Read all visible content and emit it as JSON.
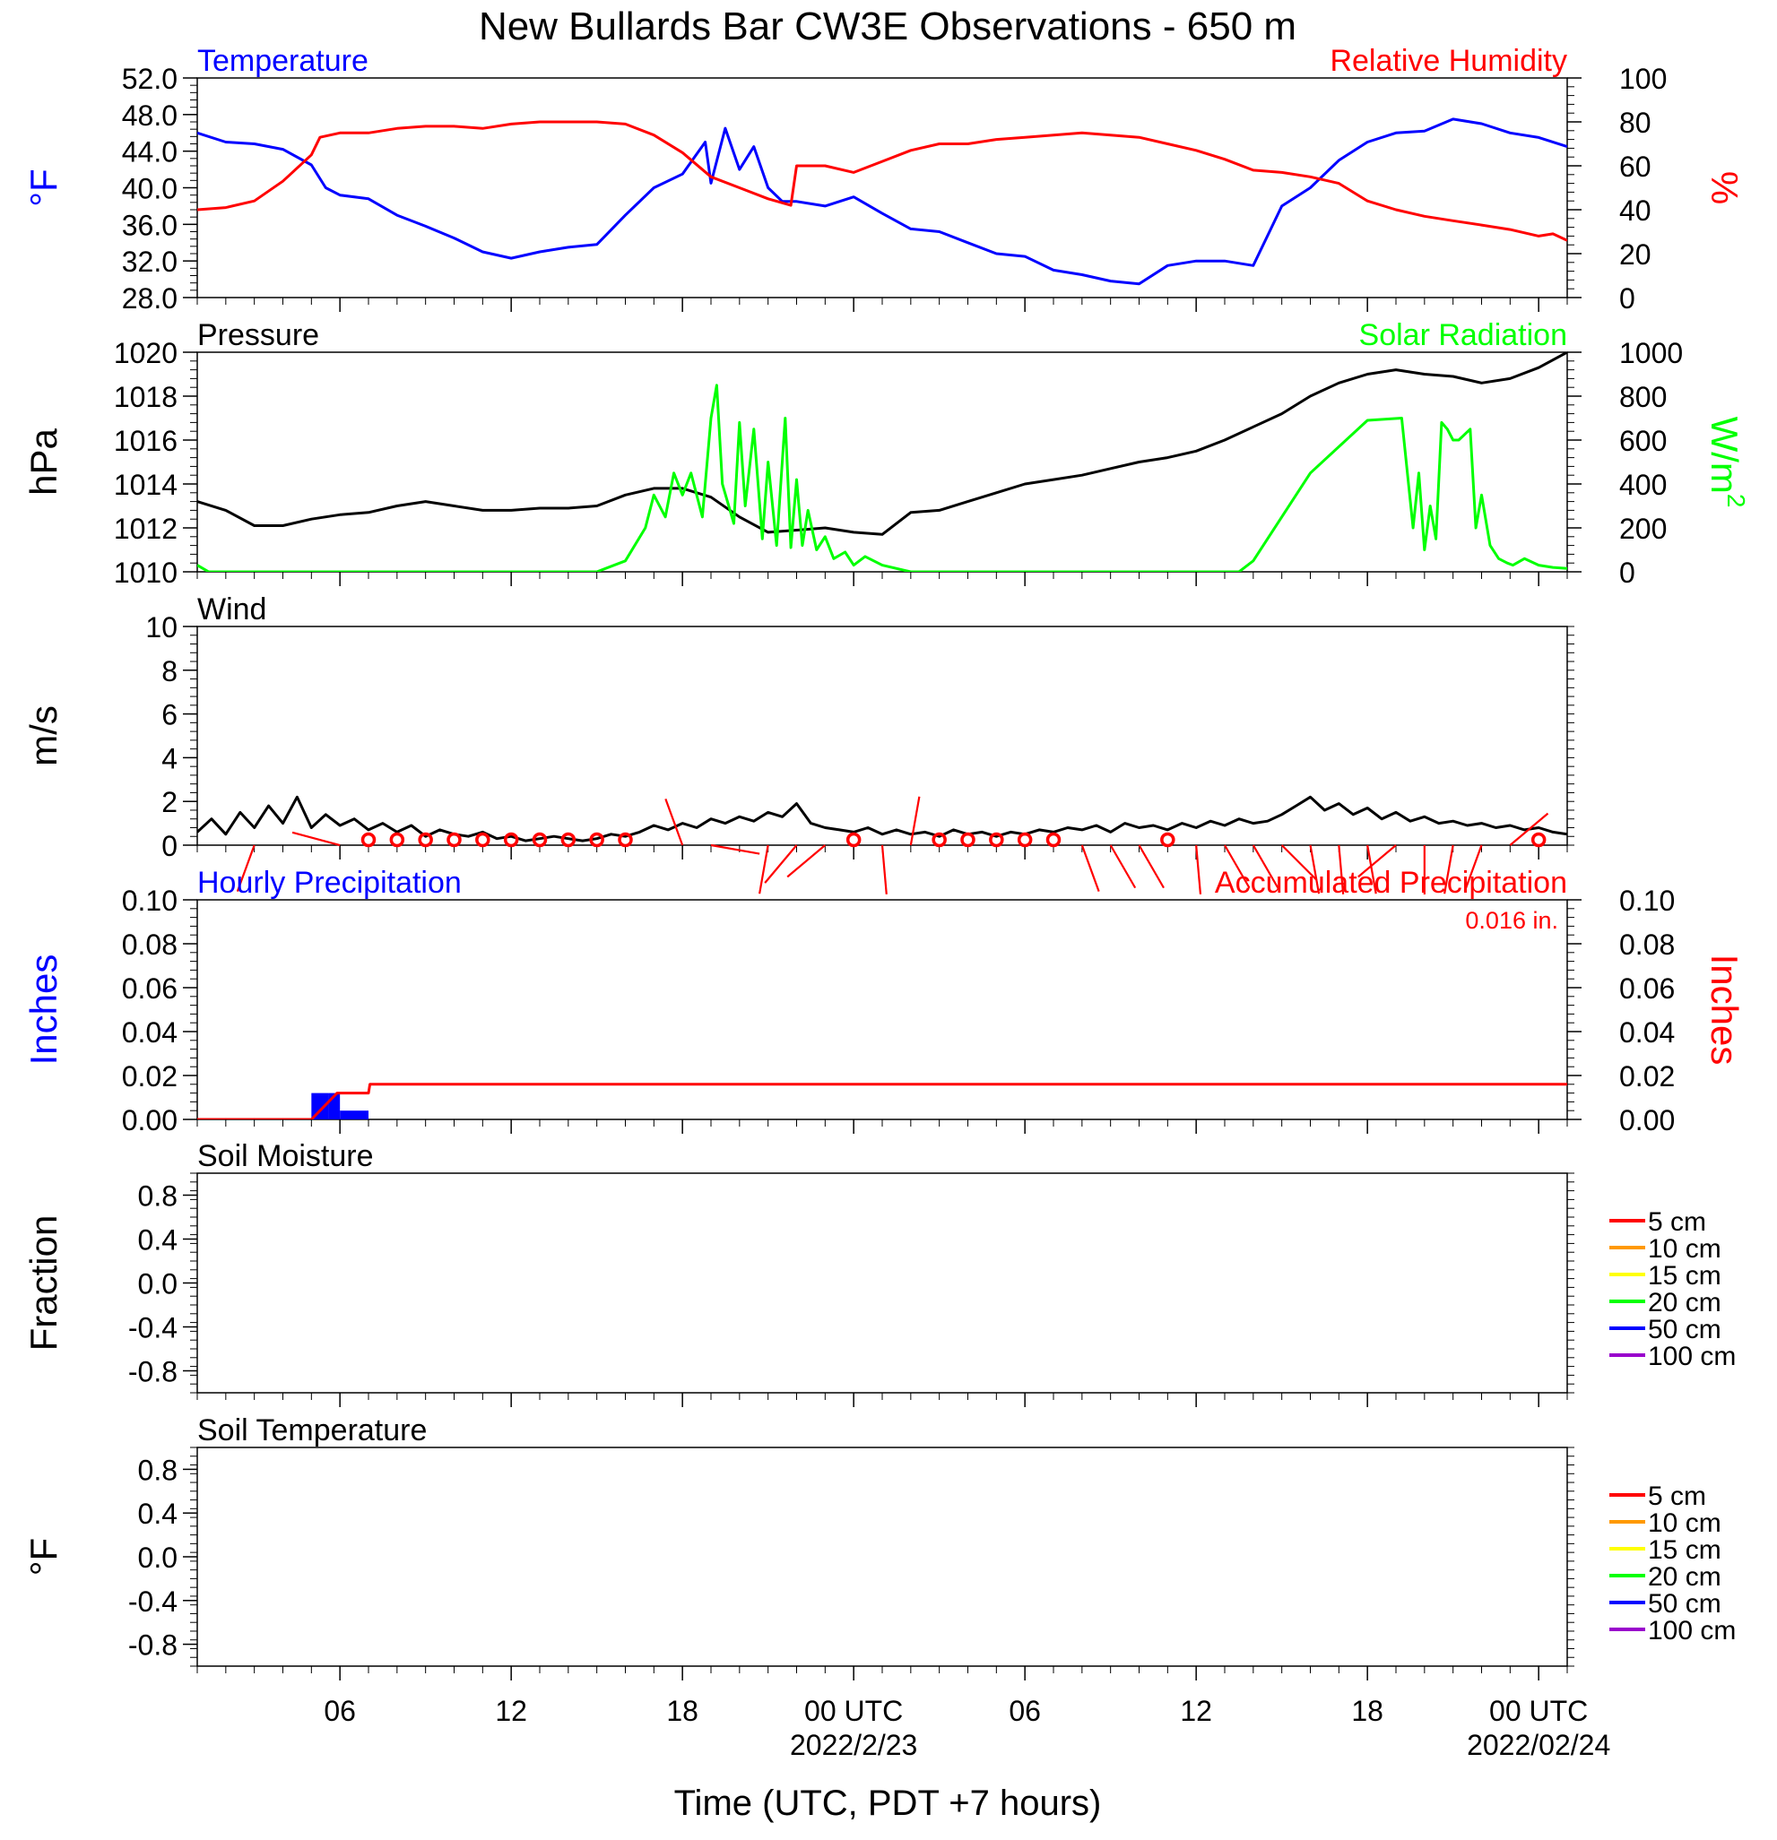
{
  "title": "New Bullards Bar CW3E Observations - 650 m",
  "x_axis": {
    "label": "Time (UTC, PDT +7 hours)",
    "ticks": [
      {
        "hour": 6,
        "label": "06"
      },
      {
        "hour": 12,
        "label": "12"
      },
      {
        "hour": 18,
        "label": "18"
      },
      {
        "hour": 24,
        "label": "00 UTC",
        "date": "2022/2/23"
      },
      {
        "hour": 30,
        "label": "06"
      },
      {
        "hour": 36,
        "label": "12"
      },
      {
        "hour": 42,
        "label": "18"
      },
      {
        "hour": 48,
        "label": "00 UTC",
        "date": "2022/02/24"
      }
    ],
    "range_hours": [
      1,
      49
    ]
  },
  "colors": {
    "temperature": "#0000ff",
    "humidity": "#ff0000",
    "pressure": "#000000",
    "solar": "#00ff00",
    "wind": "#000000",
    "wind_barb": "#ff0000",
    "hourly_precip": "#0000ff",
    "accum_precip": "#ff0000"
  },
  "chart_data": [
    {
      "id": "temp-rh",
      "type": "line",
      "left_title": "Temperature",
      "right_title": "Relative Humidity",
      "left_unit": "°F",
      "right_unit": "%",
      "left_ticks": [
        "52.0",
        "48.0",
        "44.0",
        "40.0",
        "36.0",
        "32.0",
        "28.0"
      ],
      "right_ticks": [
        "100",
        "80",
        "60",
        "40",
        "20",
        "0"
      ],
      "left_ylim": [
        28,
        52
      ],
      "right_ylim": [
        0,
        100
      ],
      "series": [
        {
          "name": "Temperature",
          "axis": "left",
          "x": [
            1,
            2,
            3,
            4,
            5,
            5.5,
            6,
            7,
            8,
            9,
            10,
            11,
            12,
            13,
            14,
            15,
            16,
            17,
            18,
            18.8,
            19,
            19.5,
            20,
            20.5,
            21,
            21.5,
            22,
            23,
            24,
            25,
            26,
            27,
            28,
            29,
            30,
            31,
            32,
            33,
            34,
            35,
            36,
            37,
            38,
            39,
            40,
            41,
            42,
            43,
            44,
            45,
            46,
            47,
            48,
            49
          ],
          "y": [
            46,
            45,
            44.8,
            44.2,
            42.5,
            40,
            39.2,
            38.8,
            37,
            35.8,
            34.5,
            33,
            32.3,
            33,
            33.5,
            33.8,
            37,
            40,
            41.5,
            45,
            40.5,
            46.5,
            42,
            44.5,
            40,
            38.5,
            38.5,
            38,
            39,
            37.2,
            35.5,
            35.2,
            34,
            32.8,
            32.5,
            31,
            30.5,
            29.8,
            29.5,
            31.5,
            32,
            32,
            31.5,
            38,
            40,
            43,
            45,
            46,
            46.2,
            47.5,
            47,
            46,
            45.5,
            44.5
          ]
        },
        {
          "name": "Relative Humidity",
          "axis": "right",
          "x": [
            1,
            2,
            3,
            4,
            5,
            5.3,
            6,
            7,
            8,
            9,
            10,
            11,
            12,
            13,
            14,
            15,
            16,
            17,
            18,
            19,
            20,
            21,
            21.8,
            22,
            23,
            24,
            25,
            26,
            27,
            28,
            29,
            30,
            31,
            32,
            33,
            34,
            35,
            36,
            37,
            38,
            39,
            40,
            41,
            42,
            43,
            44,
            45,
            46,
            47,
            48,
            48.5,
            49
          ],
          "y": [
            40,
            41,
            44,
            53,
            65,
            73,
            75,
            75,
            77,
            78,
            78,
            77,
            79,
            80,
            80,
            80,
            79,
            74,
            66,
            55,
            50,
            45,
            42,
            60,
            60,
            57,
            62,
            67,
            70,
            70,
            72,
            73,
            74,
            75,
            74,
            73,
            70,
            67,
            63,
            58,
            57,
            55,
            52,
            44,
            40,
            37,
            35,
            33,
            31,
            28,
            29,
            26
          ]
        }
      ]
    },
    {
      "id": "pressure-solar",
      "type": "line",
      "left_title": "Pressure",
      "right_title": "Solar Radiation",
      "left_unit": "hPa",
      "right_unit": "W/m",
      "right_unit_sup": "2",
      "left_ticks": [
        "1020",
        "1018",
        "1016",
        "1014",
        "1012",
        "1010"
      ],
      "right_ticks": [
        "1000",
        "800",
        "600",
        "400",
        "200",
        "0"
      ],
      "left_ylim": [
        1010,
        1020
      ],
      "right_ylim": [
        0,
        1000
      ],
      "series": [
        {
          "name": "Pressure",
          "axis": "left",
          "x": [
            1,
            2,
            3,
            4,
            5,
            6,
            7,
            8,
            9,
            10,
            11,
            12,
            13,
            14,
            15,
            16,
            17,
            18,
            19,
            20,
            21,
            22,
            23,
            24,
            25,
            26,
            27,
            28,
            29,
            30,
            31,
            32,
            33,
            34,
            35,
            36,
            37,
            38,
            39,
            40,
            41,
            42,
            43,
            44,
            45,
            46,
            47,
            48,
            49
          ],
          "y": [
            1013.2,
            1012.8,
            1012.1,
            1012.1,
            1012.4,
            1012.6,
            1012.7,
            1013,
            1013.2,
            1013,
            1012.8,
            1012.8,
            1012.9,
            1012.9,
            1013,
            1013.5,
            1013.8,
            1013.8,
            1013.4,
            1012.5,
            1011.8,
            1011.9,
            1012,
            1011.8,
            1011.7,
            1012.7,
            1012.8,
            1013.2,
            1013.6,
            1014,
            1014.2,
            1014.4,
            1014.7,
            1015,
            1015.2,
            1015.5,
            1016,
            1016.6,
            1017.2,
            1018,
            1018.6,
            1019,
            1019.2,
            1019,
            1018.9,
            1018.6,
            1018.8,
            1019.3,
            1020
          ]
        },
        {
          "name": "Solar Radiation",
          "axis": "right",
          "x": [
            1,
            1.4,
            2,
            15,
            16,
            16.7,
            17,
            17.4,
            17.7,
            18,
            18.3,
            18.7,
            19,
            19.2,
            19.4,
            19.8,
            20,
            20.2,
            20.5,
            20.8,
            21,
            21.3,
            21.6,
            21.8,
            22,
            22.2,
            22.4,
            22.7,
            23,
            23.3,
            23.7,
            24,
            24.4,
            25,
            26,
            34,
            37.5,
            38,
            40,
            42,
            43.2,
            43.6,
            43.8,
            44,
            44.2,
            44.4,
            44.6,
            44.8,
            45,
            45.2,
            45.6,
            45.8,
            46,
            46.3,
            46.6,
            46.9,
            47.1,
            47.5,
            48,
            48.5,
            49
          ],
          "y": [
            30,
            0,
            0,
            0,
            50,
            200,
            350,
            250,
            450,
            350,
            450,
            250,
            700,
            850,
            400,
            220,
            680,
            300,
            650,
            150,
            500,
            120,
            700,
            110,
            420,
            120,
            280,
            100,
            160,
            60,
            90,
            30,
            70,
            30,
            0,
            0,
            0,
            50,
            450,
            690,
            700,
            200,
            450,
            100,
            300,
            150,
            680,
            650,
            600,
            600,
            650,
            200,
            350,
            120,
            60,
            40,
            30,
            60,
            30,
            20,
            15
          ]
        }
      ]
    },
    {
      "id": "wind",
      "type": "line",
      "left_title": "Wind",
      "left_unit": "m/s",
      "left_ticks": [
        "10",
        "8",
        "6",
        "4",
        "2",
        "0"
      ],
      "left_ylim": [
        0,
        10
      ],
      "series": [
        {
          "name": "Wind",
          "axis": "left",
          "x": [
            1,
            1.5,
            2,
            2.5,
            3,
            3.5,
            4,
            4.5,
            5,
            5.5,
            6,
            6.5,
            7,
            7.5,
            8,
            8.5,
            9,
            9.5,
            10,
            10.5,
            11,
            11.5,
            12,
            12.5,
            13,
            13.5,
            14,
            14.5,
            15,
            15.5,
            16,
            16.5,
            17,
            17.5,
            18,
            18.5,
            19,
            19.5,
            20,
            20.5,
            21,
            21.5,
            22,
            22.5,
            23,
            23.5,
            24,
            24.5,
            25,
            25.5,
            26,
            26.5,
            27,
            27.5,
            28,
            28.5,
            29,
            29.5,
            30,
            30.5,
            31,
            31.5,
            32,
            32.5,
            33,
            33.5,
            34,
            34.5,
            35,
            35.5,
            36,
            36.5,
            37,
            37.5,
            38,
            38.5,
            39,
            39.5,
            40,
            40.5,
            41,
            41.5,
            42,
            42.5,
            43,
            43.5,
            44,
            44.5,
            45,
            45.5,
            46,
            46.5,
            47,
            47.5,
            48,
            48.5,
            49
          ],
          "y": [
            0.6,
            1.2,
            0.5,
            1.5,
            0.8,
            1.8,
            1.0,
            2.2,
            0.8,
            1.4,
            0.9,
            1.2,
            0.7,
            1.0,
            0.6,
            0.9,
            0.4,
            0.7,
            0.5,
            0.4,
            0.6,
            0.3,
            0.4,
            0.2,
            0.3,
            0.4,
            0.3,
            0.2,
            0.3,
            0.5,
            0.4,
            0.6,
            0.9,
            0.7,
            1.0,
            0.8,
            1.2,
            1.0,
            1.3,
            1.1,
            1.5,
            1.3,
            1.9,
            1.0,
            0.8,
            0.7,
            0.6,
            0.8,
            0.5,
            0.7,
            0.5,
            0.6,
            0.4,
            0.7,
            0.5,
            0.6,
            0.4,
            0.6,
            0.5,
            0.7,
            0.6,
            0.8,
            0.7,
            0.9,
            0.6,
            1.0,
            0.8,
            0.9,
            0.7,
            1.0,
            0.8,
            1.1,
            0.9,
            1.2,
            1.0,
            1.1,
            1.4,
            1.8,
            2.2,
            1.6,
            1.9,
            1.4,
            1.7,
            1.2,
            1.5,
            1.1,
            1.3,
            1.0,
            1.1,
            0.9,
            1.0,
            0.8,
            0.9,
            0.7,
            0.8,
            0.6,
            0.5
          ]
        }
      ],
      "calm_markers": [
        7,
        8,
        9,
        10,
        11,
        12,
        13,
        14,
        15,
        16,
        24,
        27,
        28,
        29,
        30,
        31,
        35,
        48
      ],
      "barbs": [
        {
          "hour": 3,
          "dir": 200
        },
        {
          "hour": 6,
          "dir": 285
        },
        {
          "hour": 18,
          "dir": 340
        },
        {
          "hour": 19,
          "dir": 100
        },
        {
          "hour": 21,
          "dir": 190
        },
        {
          "hour": 22,
          "dir": 220
        },
        {
          "hour": 23,
          "dir": 230
        },
        {
          "hour": 25,
          "dir": 175
        },
        {
          "hour": 26,
          "dir": 10
        },
        {
          "hour": 32,
          "dir": 160
        },
        {
          "hour": 33,
          "dir": 150
        },
        {
          "hour": 34,
          "dir": 150
        },
        {
          "hour": 36,
          "dir": 175
        },
        {
          "hour": 37,
          "dir": 150
        },
        {
          "hour": 38,
          "dir": 150
        },
        {
          "hour": 39,
          "dir": 135
        },
        {
          "hour": 40,
          "dir": 170
        },
        {
          "hour": 41,
          "dir": 175
        },
        {
          "hour": 42,
          "dir": 170
        },
        {
          "hour": 43,
          "dir": 230
        },
        {
          "hour": 44,
          "dir": 180
        },
        {
          "hour": 45,
          "dir": 190
        },
        {
          "hour": 46,
          "dir": 200
        },
        {
          "hour": 47,
          "dir": 50
        }
      ]
    },
    {
      "id": "precip",
      "type": "bar",
      "left_title": "Hourly Precipitation",
      "right_title": "Accumulated Precipitation",
      "annotation": "0.016 in.",
      "left_unit": "Inches",
      "right_unit": "Inches",
      "left_ticks": [
        "0.10",
        "0.08",
        "0.06",
        "0.04",
        "0.02",
        "0.00"
      ],
      "right_ticks": [
        "0.10",
        "0.08",
        "0.06",
        "0.04",
        "0.02",
        "0.00"
      ],
      "left_ylim": [
        0,
        0.1
      ],
      "right_ylim": [
        0,
        0.1
      ],
      "series": [
        {
          "name": "Hourly Precipitation",
          "axis": "left",
          "bars": [
            {
              "x0": 5,
              "x1": 5.6,
              "y": 0.012
            },
            {
              "x0": 5.6,
              "x1": 6,
              "y": 0.012
            },
            {
              "x0": 6,
              "x1": 7,
              "y": 0.004
            }
          ]
        },
        {
          "name": "Accumulated Precipitation",
          "axis": "right",
          "x": [
            1,
            5,
            5.3,
            5.6,
            5.9,
            6,
            7,
            7.05,
            49
          ],
          "y": [
            0,
            0,
            0.004,
            0.008,
            0.012,
            0.012,
            0.012,
            0.016,
            0.016
          ]
        }
      ]
    },
    {
      "id": "soil-moisture",
      "type": "line",
      "left_title": "Soil Moisture",
      "left_unit": "Fraction",
      "left_ticks": [
        "0.8",
        "0.4",
        "0.0",
        "-0.4",
        "-0.8"
      ],
      "left_ylim": [
        -1,
        1
      ],
      "legend": [
        {
          "label": "5 cm",
          "color": "#ff0000"
        },
        {
          "label": "10 cm",
          "color": "#ff9900"
        },
        {
          "label": "15 cm",
          "color": "#ffff00"
        },
        {
          "label": "20 cm",
          "color": "#00ff00"
        },
        {
          "label": "50 cm",
          "color": "#0000ff"
        },
        {
          "label": "100 cm",
          "color": "#9900cc"
        }
      ],
      "series": []
    },
    {
      "id": "soil-temp",
      "type": "line",
      "left_title": "Soil Temperature",
      "left_unit": "°F",
      "left_ticks": [
        "0.8",
        "0.4",
        "0.0",
        "-0.4",
        "-0.8"
      ],
      "left_ylim": [
        -1,
        1
      ],
      "legend": [
        {
          "label": "5 cm",
          "color": "#ff0000"
        },
        {
          "label": "10 cm",
          "color": "#ff9900"
        },
        {
          "label": "15 cm",
          "color": "#ffff00"
        },
        {
          "label": "20 cm",
          "color": "#00ff00"
        },
        {
          "label": "50 cm",
          "color": "#0000ff"
        },
        {
          "label": "100 cm",
          "color": "#9900cc"
        }
      ],
      "series": []
    }
  ]
}
